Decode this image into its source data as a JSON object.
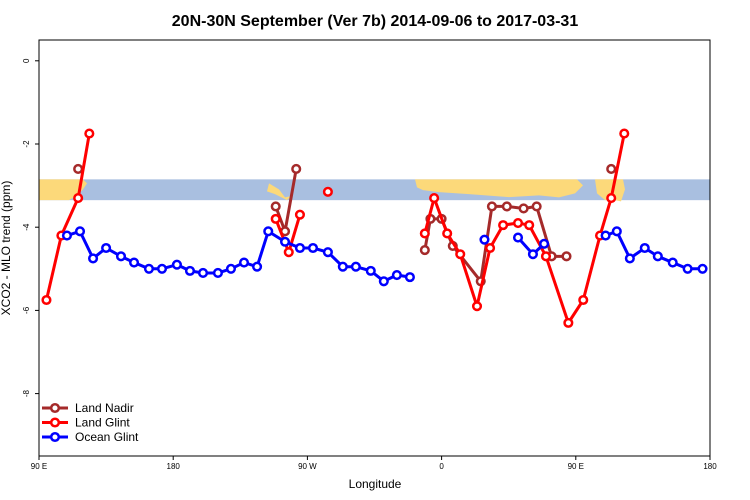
{
  "chart_data": {
    "type": "line",
    "title": "20N-30N September (Ver 7b)   2014-09-06 to 2017-03-31",
    "xlabel": "Longitude",
    "ylabel": "XCO2 - MLO trend (ppm)",
    "xlim": [
      0,
      360
    ],
    "ylim": [
      -9.5,
      0.5
    ],
    "x_ticks": [
      {
        "value": 0,
        "label": "90 E"
      },
      {
        "value": 72,
        "label": "180"
      },
      {
        "value": 144,
        "label": "90 W"
      },
      {
        "value": 216,
        "label": "0"
      },
      {
        "value": 288,
        "label": "90 E"
      },
      {
        "value": 360,
        "label": "180"
      }
    ],
    "y_ticks": [
      {
        "value": 0,
        "label": "0"
      },
      {
        "value": -2,
        "label": "-2"
      },
      {
        "value": -4,
        "label": "-4"
      },
      {
        "value": -6,
        "label": "-6"
      },
      {
        "value": -8,
        "label": "-8"
      }
    ],
    "grid": false,
    "legend_position": "bottom-left",
    "map_band": {
      "y_top": -2.85,
      "y_bottom": -3.35,
      "ocean_color": "#a9bfe0",
      "land_color": "#fcd97a"
    },
    "series": [
      {
        "name": "Land Nadir",
        "color": "#a52a2a",
        "segments": [
          [
            [
              21,
              -2.6
            ]
          ],
          [
            [
              127,
              -3.5
            ],
            [
              132,
              -4.1
            ],
            [
              138,
              -2.6
            ]
          ],
          [
            [
              207,
              -4.55
            ],
            [
              210,
              -3.8
            ],
            [
              216,
              -3.8
            ],
            [
              222,
              -4.45
            ],
            [
              237,
              -5.3
            ],
            [
              243,
              -3.5
            ],
            [
              251,
              -3.5
            ],
            [
              260,
              -3.55
            ],
            [
              267,
              -3.5
            ],
            [
              275,
              -4.7
            ],
            [
              283,
              -4.7
            ]
          ],
          [
            [
              307,
              -2.6
            ]
          ]
        ]
      },
      {
        "name": "Land Glint",
        "color": "#ff0000",
        "segments": [
          [
            [
              4,
              -5.75
            ],
            [
              12,
              -4.2
            ],
            [
              21,
              -3.3
            ],
            [
              27,
              -1.75
            ]
          ],
          [
            [
              127,
              -3.8
            ],
            [
              134,
              -4.6
            ],
            [
              140,
              -3.7
            ]
          ],
          [
            [
              155,
              -3.15
            ]
          ],
          [
            [
              207,
              -4.15
            ],
            [
              212,
              -3.3
            ],
            [
              219,
              -4.15
            ],
            [
              226,
              -4.65
            ],
            [
              235,
              -5.9
            ],
            [
              242,
              -4.5
            ],
            [
              249,
              -3.95
            ],
            [
              257,
              -3.9
            ],
            [
              263,
              -3.95
            ],
            [
              272,
              -4.7
            ],
            [
              284,
              -6.3
            ],
            [
              292,
              -5.75
            ],
            [
              301,
              -4.2
            ],
            [
              307,
              -3.3
            ],
            [
              314,
              -1.75
            ]
          ]
        ]
      },
      {
        "name": "Ocean Glint",
        "color": "#0000ff",
        "segments": [
          [
            [
              15,
              -4.2
            ],
            [
              22,
              -4.1
            ],
            [
              29,
              -4.75
            ],
            [
              36,
              -4.5
            ],
            [
              44,
              -4.7
            ],
            [
              51,
              -4.85
            ],
            [
              59,
              -5
            ],
            [
              66,
              -5
            ],
            [
              74,
              -4.9
            ],
            [
              81,
              -5.05
            ],
            [
              88,
              -5.1
            ],
            [
              96,
              -5.1
            ],
            [
              103,
              -5
            ],
            [
              110,
              -4.85
            ],
            [
              117,
              -4.95
            ],
            [
              123,
              -4.1
            ],
            [
              132,
              -4.35
            ],
            [
              140,
              -4.5
            ],
            [
              147,
              -4.5
            ],
            [
              155,
              -4.6
            ],
            [
              163,
              -4.95
            ],
            [
              170,
              -4.95
            ],
            [
              178,
              -5.05
            ],
            [
              185,
              -5.3
            ],
            [
              192,
              -5.15
            ],
            [
              199,
              -5.2
            ]
          ],
          [
            [
              239,
              -4.3
            ]
          ],
          [
            [
              257,
              -4.25
            ],
            [
              265,
              -4.65
            ],
            [
              271,
              -4.4
            ]
          ],
          [
            [
              304,
              -4.2
            ],
            [
              310,
              -4.1
            ],
            [
              317,
              -4.75
            ],
            [
              325,
              -4.5
            ],
            [
              332,
              -4.7
            ],
            [
              340,
              -4.85
            ],
            [
              348,
              -5
            ],
            [
              356,
              -5
            ]
          ]
        ]
      }
    ]
  }
}
